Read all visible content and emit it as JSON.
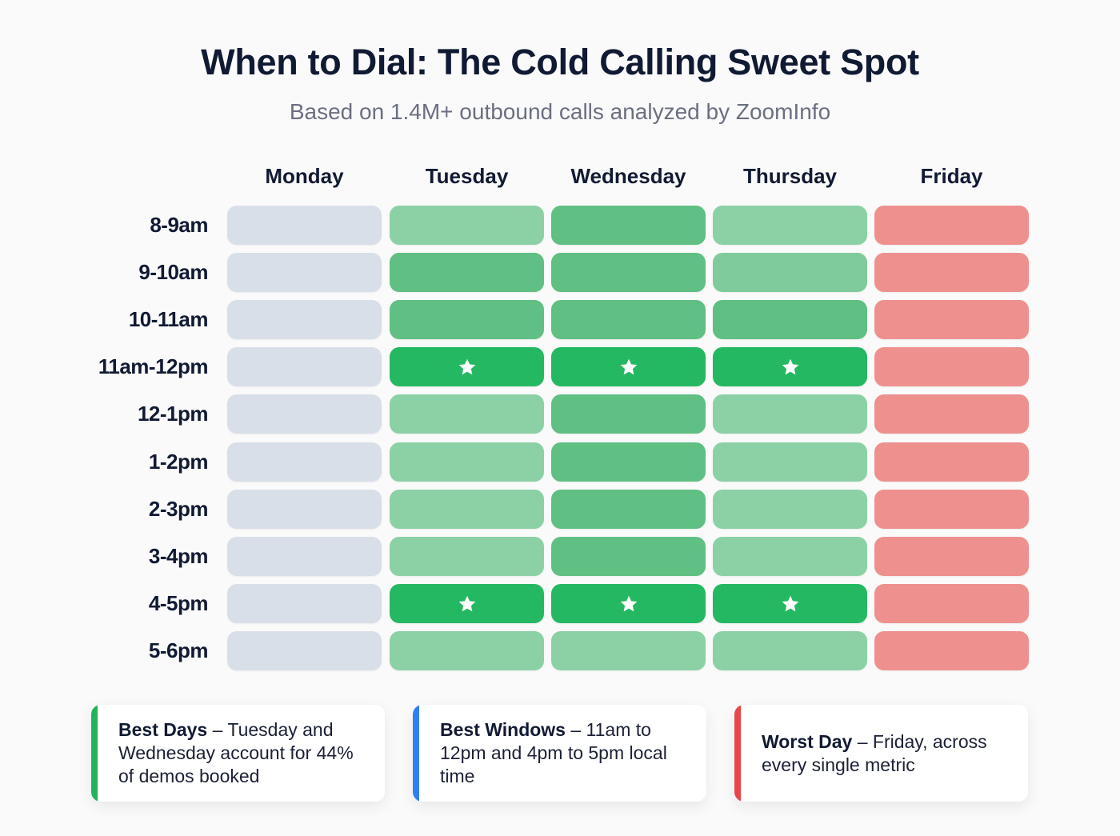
{
  "header": {
    "title": "When to Dial: The Cold Calling Sweet Spot",
    "subtitle": "Based on 1.4M+ outbound calls analyzed by ZoomInfo"
  },
  "colors": {
    "background": "#fafafa",
    "neutral": "#d9dfe8",
    "light_green": "#8bd1a5",
    "mid_light_green": "#80cb9c",
    "medium_green": "#60bf83",
    "best_green": "#25b862",
    "worst_red": "#ee918e",
    "accent_green": "#22b45c",
    "accent_blue": "#2f7ff0",
    "accent_red": "#e5474a"
  },
  "chart_data": {
    "type": "heatmap",
    "title": "When to Dial: The Cold Calling Sweet Spot",
    "subtitle": "Based on 1.4M+ outbound calls analyzed by ZoomInfo",
    "x": [
      "Monday",
      "Tuesday",
      "Wednesday",
      "Thursday",
      "Friday"
    ],
    "y": [
      "8-9am",
      "9-10am",
      "10-11am",
      "11am-12pm",
      "12-1pm",
      "1-2pm",
      "2-3pm",
      "3-4pm",
      "4-5pm",
      "5-6pm"
    ],
    "scale_legend": {
      "0": "neutral (gray)",
      "1": "light green",
      "2": "mid-light green",
      "3": "medium green",
      "4": "best window (star)",
      "-1": "worst (red)"
    },
    "values": [
      [
        0,
        1,
        3,
        1,
        -1
      ],
      [
        0,
        3,
        3,
        2,
        -1
      ],
      [
        0,
        3,
        3,
        3,
        -1
      ],
      [
        0,
        4,
        4,
        4,
        -1
      ],
      [
        0,
        1,
        3,
        1,
        -1
      ],
      [
        0,
        1,
        3,
        1,
        -1
      ],
      [
        0,
        1,
        3,
        1,
        -1
      ],
      [
        0,
        1,
        3,
        1,
        -1
      ],
      [
        0,
        4,
        4,
        4,
        -1
      ],
      [
        0,
        1,
        1,
        1,
        -1
      ]
    ],
    "annotations": [
      "Star marks: Tue/Wed/Thu 11am-12pm and 4-5pm"
    ],
    "xlabel": "",
    "ylabel": "",
    "grid": false,
    "legend_position": "none"
  },
  "callouts": [
    {
      "label": "Best Days",
      "text": " – Tuesday and Wednesday account for 44% of demos booked",
      "accent": "#22b45c"
    },
    {
      "label": "Best Windows",
      "text": " – 11am to 12pm and 4pm to 5pm local time",
      "accent": "#2f7ff0"
    },
    {
      "label": "Worst Day",
      "text": " – Friday, across every single metric",
      "accent": "#e5474a"
    }
  ]
}
